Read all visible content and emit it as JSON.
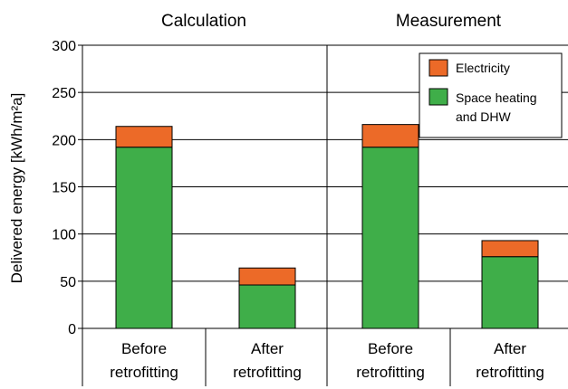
{
  "chart_data": {
    "type": "bar",
    "stacked": true,
    "ylabel": "Delivered energy [kWh/m²a]",
    "ylim": [
      0,
      300
    ],
    "yticks": [
      0,
      50,
      100,
      150,
      200,
      250,
      300
    ],
    "grid": true,
    "legend_position": "top-right",
    "panels": [
      {
        "title": "Calculation",
        "categories": [
          {
            "line1": "Before",
            "line2": "retrofitting"
          },
          {
            "line1": "After",
            "line2": "retrofitting"
          }
        ],
        "space_heating": [
          192,
          46
        ],
        "electricity": [
          22,
          18
        ]
      },
      {
        "title": "Measurement",
        "categories": [
          {
            "line1": "Before",
            "line2": "retrofitting"
          },
          {
            "line1": "After",
            "line2": "retrofitting"
          }
        ],
        "space_heating": [
          192,
          76
        ],
        "electricity": [
          24,
          17
        ]
      }
    ],
    "series": [
      {
        "key": "electricity",
        "name": "Electricity",
        "color": "#ec6a28"
      },
      {
        "key": "space_heating",
        "name_line1": "Space heating",
        "name_line2": "and DHW",
        "color": "#3fae49"
      }
    ]
  }
}
